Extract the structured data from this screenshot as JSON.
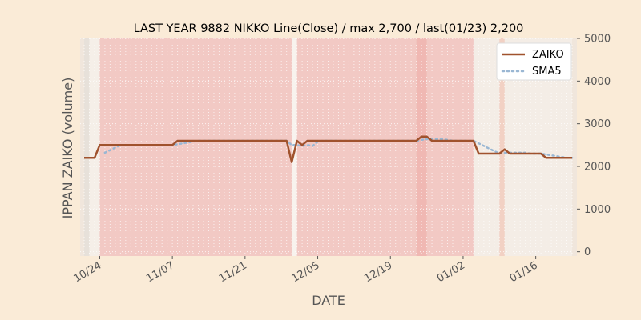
{
  "chart_data": {
    "type": "line",
    "title": "LAST YEAR 9882 NIKKO Line(Close) / max 2,700 / last(01/23) 2,200",
    "xlabel": "DATE",
    "ylabel": "IPPAN ZAIKO (volume)",
    "ylim": [
      -100,
      5000
    ],
    "ytick_labels": [
      "0",
      "1000",
      "2000",
      "3000",
      "4000",
      "5000"
    ],
    "ytick_values": [
      0,
      1000,
      2000,
      3000,
      4000,
      5000
    ],
    "yaxis_side": "right",
    "xtick_labels": [
      "10/24",
      "11/07",
      "11/21",
      "12/05",
      "12/19",
      "01/02",
      "01/16"
    ],
    "xtick_values": [
      "10-24",
      "11-07",
      "11-21",
      "12-05",
      "12-19",
      "01-02",
      "01-16"
    ],
    "x": [
      "10-21",
      "10-22",
      "10-23",
      "10-24",
      "10-25",
      "10-26",
      "10-27",
      "10-28",
      "10-29",
      "10-30",
      "10-31",
      "11-01",
      "11-02",
      "11-03",
      "11-04",
      "11-05",
      "11-06",
      "11-07",
      "11-08",
      "11-09",
      "11-10",
      "11-11",
      "11-12",
      "11-13",
      "11-14",
      "11-15",
      "11-16",
      "11-17",
      "11-18",
      "11-19",
      "11-20",
      "11-21",
      "11-22",
      "11-23",
      "11-24",
      "11-25",
      "11-26",
      "11-27",
      "11-28",
      "11-29",
      "11-30",
      "12-01",
      "12-02",
      "12-03",
      "12-04",
      "12-05",
      "12-06",
      "12-07",
      "12-08",
      "12-09",
      "12-10",
      "12-11",
      "12-12",
      "12-13",
      "12-14",
      "12-15",
      "12-16",
      "12-17",
      "12-18",
      "12-19",
      "12-20",
      "12-21",
      "12-22",
      "12-23",
      "12-24",
      "12-25",
      "12-26",
      "12-27",
      "12-28",
      "12-29",
      "12-30",
      "12-31",
      "01-01",
      "01-02",
      "01-03",
      "01-04",
      "01-05",
      "01-06",
      "01-07",
      "01-08",
      "01-09",
      "01-10",
      "01-11",
      "01-12",
      "01-13",
      "01-14",
      "01-15",
      "01-16",
      "01-17",
      "01-18",
      "01-19",
      "01-20",
      "01-21",
      "01-22",
      "01-23"
    ],
    "series": [
      {
        "name": "ZAIKO",
        "color": "#a0522d",
        "style": "solid",
        "values": [
          2200,
          2200,
          2200,
          2500,
          2500,
          2500,
          2500,
          2500,
          2500,
          2500,
          2500,
          2500,
          2500,
          2500,
          2500,
          2500,
          2500,
          2500,
          2600,
          2600,
          2600,
          2600,
          2600,
          2600,
          2600,
          2600,
          2600,
          2600,
          2600,
          2600,
          2600,
          2600,
          2600,
          2600,
          2600,
          2600,
          2600,
          2600,
          2600,
          2600,
          2100,
          2600,
          2500,
          2600,
          2600,
          2600,
          2600,
          2600,
          2600,
          2600,
          2600,
          2600,
          2600,
          2600,
          2600,
          2600,
          2600,
          2600,
          2600,
          2600,
          2600,
          2600,
          2600,
          2600,
          2600,
          2700,
          2700,
          2600,
          2600,
          2600,
          2600,
          2600,
          2600,
          2600,
          2600,
          2600,
          2300,
          2300,
          2300,
          2300,
          2300,
          2400,
          2300,
          2300,
          2300,
          2300,
          2300,
          2300,
          2300,
          2200,
          2200,
          2200,
          2200,
          2200,
          2200
        ]
      },
      {
        "name": "SMA5",
        "color": "#9ab7d3",
        "style": "dotted",
        "values": [
          null,
          null,
          null,
          null,
          2320,
          2380,
          2440,
          2500,
          2500,
          2500,
          2500,
          2500,
          2500,
          2500,
          2500,
          2500,
          2500,
          2500,
          2520,
          2540,
          2560,
          2580,
          2600,
          2600,
          2600,
          2600,
          2600,
          2600,
          2600,
          2600,
          2600,
          2600,
          2600,
          2600,
          2600,
          2600,
          2600,
          2600,
          2600,
          2600,
          2500,
          2500,
          2480,
          2500,
          2480,
          2580,
          2600,
          2600,
          2600,
          2600,
          2600,
          2600,
          2600,
          2600,
          2600,
          2600,
          2600,
          2600,
          2600,
          2600,
          2600,
          2600,
          2600,
          2600,
          2600,
          2620,
          2640,
          2640,
          2640,
          2640,
          2620,
          2600,
          2600,
          2600,
          2600,
          2600,
          2540,
          2480,
          2420,
          2360,
          2300,
          2320,
          2320,
          2320,
          2320,
          2320,
          2300,
          2300,
          2300,
          2280,
          2260,
          2240,
          2220,
          2200,
          2200
        ]
      }
    ],
    "shaded_ranges": [
      {
        "from": "10-21",
        "to": "10-22",
        "color": "#d8d8d8",
        "opacity": 0.35
      },
      {
        "from": "10-22",
        "to": "10-24",
        "color": "#ffffff",
        "opacity": 0.35
      },
      {
        "from": "10-24",
        "to": "11-30",
        "color": "#f4a7a7",
        "opacity": 0.45
      },
      {
        "from": "11-30",
        "to": "12-01",
        "color": "#ffffff",
        "opacity": 0.5
      },
      {
        "from": "12-01",
        "to": "12-24",
        "color": "#f4a7a7",
        "opacity": 0.45
      },
      {
        "from": "12-24",
        "to": "12-26",
        "color": "#f08a8a",
        "opacity": 0.5
      },
      {
        "from": "12-26",
        "to": "01-04",
        "color": "#f4a7a7",
        "opacity": 0.45
      },
      {
        "from": "01-04",
        "to": "01-09",
        "color": "#ffffff",
        "opacity": 0.3
      },
      {
        "from": "01-09",
        "to": "01-10",
        "color": "#f4c0b0",
        "opacity": 0.55
      },
      {
        "from": "01-10",
        "to": "01-23",
        "color": "#ffffff",
        "opacity": 0.3
      }
    ],
    "grid": true,
    "legend_position": "top-right"
  }
}
